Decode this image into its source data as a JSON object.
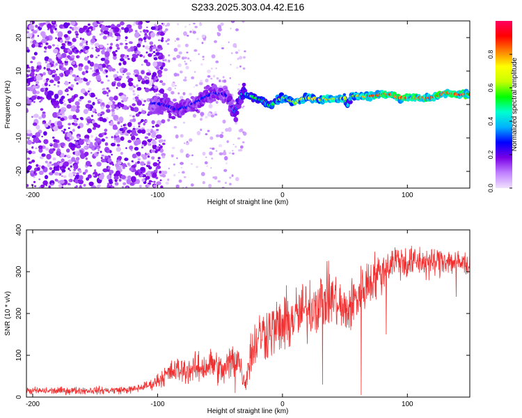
{
  "title": "S233.2025.303.04.42.E16",
  "chart_data": [
    {
      "type": "heatmap",
      "title": "S233.2025.303.04.42.E16",
      "xlabel": "Height of straight line (km)",
      "ylabel": "Frequency (Hz)",
      "xlim": [
        -205,
        150
      ],
      "ylim": [
        -25,
        25
      ],
      "xticks": [
        -200,
        -100,
        0,
        100
      ],
      "yticks": [
        -20,
        -10,
        0,
        10,
        20
      ],
      "grid": false,
      "colorbar": {
        "label": "Normalized spectral amplitude",
        "range": [
          0.0,
          1.0
        ],
        "ticks": [
          0.0,
          0.2,
          0.4,
          0.6,
          0.8
        ],
        "colors": [
          "#f0e0ff",
          "#c080ff",
          "#7a00e6",
          "#0000ff",
          "#00b0ff",
          "#00ffd0",
          "#00ff00",
          "#c8ff00",
          "#ffff00",
          "#ff8000",
          "#ff0000",
          "#ff0060"
        ]
      },
      "noise_region": {
        "x_range": [
          -205,
          -95
        ],
        "freq_range": [
          -25,
          25
        ],
        "amplitude_range": [
          0.0,
          0.2
        ]
      },
      "sparse_region": {
        "x_range": [
          -95,
          -30
        ],
        "freq_range": [
          -25,
          25
        ],
        "amplitude_range": [
          0.0,
          0.1
        ]
      },
      "signal_track": {
        "x": [
          -105,
          -95,
          -85,
          -75,
          -65,
          -55,
          -45,
          -38,
          -32,
          -25,
          -15,
          -10,
          -5,
          0,
          5,
          10,
          15,
          20,
          30,
          40,
          50,
          52,
          55,
          60,
          70,
          80,
          88,
          92,
          100,
          110,
          120,
          130,
          140,
          150
        ],
        "freq": [
          0.5,
          0.0,
          -1.5,
          -0.5,
          1.5,
          3.5,
          3.0,
          -2.5,
          3.5,
          2.5,
          1.0,
          -0.5,
          1.0,
          2.0,
          1.5,
          0.5,
          1.5,
          2.0,
          1.5,
          1.5,
          2.0,
          -0.5,
          2.5,
          2.5,
          2.5,
          3.0,
          3.0,
          2.0,
          2.0,
          2.0,
          2.0,
          3.5,
          3.0,
          3.0
        ],
        "amplitude": [
          0.25,
          0.3,
          0.3,
          0.3,
          0.3,
          0.3,
          0.28,
          0.35,
          0.45,
          0.55,
          0.6,
          0.55,
          0.6,
          0.65,
          0.65,
          0.7,
          0.75,
          0.75,
          0.8,
          0.8,
          0.75,
          0.45,
          0.6,
          0.75,
          0.9,
          0.95,
          0.95,
          0.9,
          0.9,
          0.9,
          0.95,
          0.95,
          0.95,
          0.95
        ]
      }
    },
    {
      "type": "line",
      "xlabel": "Height of straight line (km)",
      "ylabel": "SNR (10 * v/v)",
      "xlim": [
        -205,
        150
      ],
      "ylim": [
        0,
        400
      ],
      "xticks": [
        -200,
        -100,
        0,
        100
      ],
      "yticks": [
        0,
        100,
        200,
        300,
        400
      ],
      "color": "#f03030",
      "series": [
        {
          "name": "SNR",
          "x": [
            -205,
            -180,
            -160,
            -140,
            -120,
            -105,
            -95,
            -85,
            -75,
            -65,
            -55,
            -48,
            -42,
            -36,
            -30,
            -26,
            -22,
            -18,
            -10,
            0,
            10,
            20,
            30,
            40,
            50,
            60,
            70,
            80,
            90,
            100,
            110,
            120,
            130,
            140,
            150
          ],
          "mean": [
            15,
            15,
            16,
            16,
            18,
            30,
            50,
            65,
            65,
            70,
            80,
            60,
            80,
            100,
            30,
            100,
            125,
            150,
            160,
            170,
            190,
            210,
            230,
            240,
            200,
            240,
            280,
            300,
            330,
            320,
            325,
            320,
            330,
            320,
            320
          ],
          "spread": [
            15,
            15,
            15,
            15,
            15,
            20,
            40,
            50,
            55,
            60,
            70,
            60,
            80,
            80,
            30,
            100,
            100,
            110,
            110,
            120,
            120,
            120,
            120,
            110,
            110,
            100,
            100,
            80,
            70,
            70,
            60,
            60,
            60,
            55,
            50
          ]
        }
      ],
      "dips": [
        [
          -38,
          10
        ],
        [
          32,
          30
        ],
        [
          63,
          5
        ],
        [
          83,
          150
        ],
        [
          115,
          280
        ],
        [
          139,
          240
        ]
      ]
    }
  ]
}
